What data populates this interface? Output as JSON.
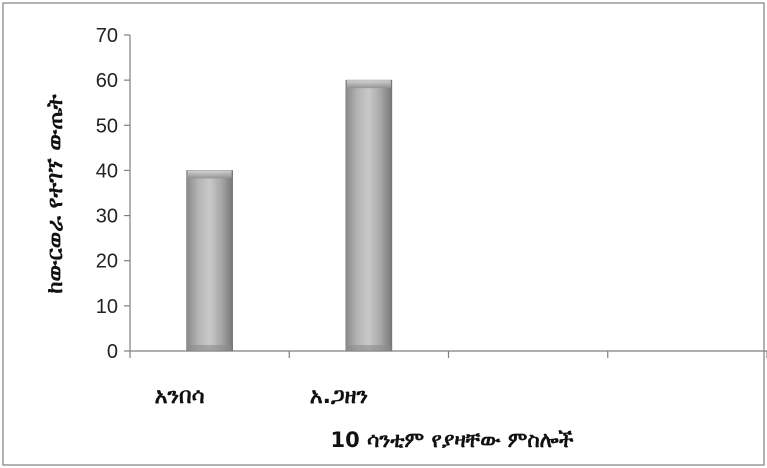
{
  "chart_data": {
    "type": "bar",
    "categories": [
      "አንበሳ",
      "አ.ጋዘን"
    ],
    "values": [
      40,
      60
    ],
    "xlabel": "10 ሳንቲም የያዛቸው ምስሎች",
    "ylabel": "ከውርወራ የተገኘ ውጤት",
    "ylim": [
      0,
      70
    ],
    "yticks": [
      0,
      10,
      20,
      30,
      40,
      50,
      60,
      70
    ],
    "category_slots": 4,
    "grid": false,
    "legend": "none",
    "colors": {
      "bar_light": "#cfcfcf",
      "bar_mid": "#a9a9a9",
      "bar_dark": "#7a7a7a",
      "axis": "#7f7f7f"
    }
  }
}
